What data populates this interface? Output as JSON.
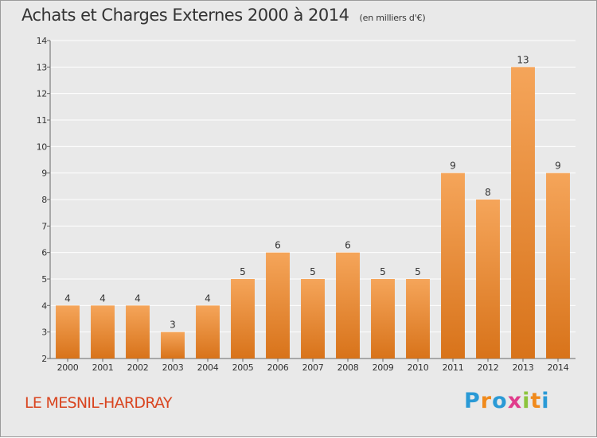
{
  "header": {
    "title": "Achats et Charges Externes 2000 à 2014",
    "subtitle": "(en milliers d'€)"
  },
  "footer": {
    "commune": "LE MESNIL-HARDRAY",
    "brand_letters": [
      {
        "char": "P",
        "color": "#2a9ad6"
      },
      {
        "char": "r",
        "color": "#f08a1c"
      },
      {
        "char": "o",
        "color": "#2a9ad6"
      },
      {
        "char": "x",
        "color": "#e03c8c"
      },
      {
        "char": "i",
        "color": "#8cc43c"
      },
      {
        "char": "t",
        "color": "#f08a1c"
      },
      {
        "char": "i",
        "color": "#2a9ad6"
      }
    ]
  },
  "colors": {
    "background": "#e9e9e9",
    "bar_top": "#f5a55a",
    "bar_bottom": "#d8731a",
    "grid": "#ffffff",
    "commune": "#d94520"
  },
  "chart_data": {
    "type": "bar",
    "title": "Achats et Charges Externes 2000 à 2014",
    "subtitle": "(en milliers d'€)",
    "categories": [
      "2000",
      "2001",
      "2002",
      "2003",
      "2004",
      "2005",
      "2006",
      "2007",
      "2008",
      "2009",
      "2010",
      "2011",
      "2012",
      "2013",
      "2014"
    ],
    "values": [
      4,
      4,
      4,
      3,
      4,
      5,
      6,
      5,
      6,
      5,
      5,
      9,
      8,
      13,
      9
    ],
    "ylim": [
      2,
      14
    ],
    "yticks": [
      2,
      3,
      4,
      5,
      6,
      7,
      8,
      9,
      10,
      11,
      12,
      13,
      14
    ],
    "grid": true,
    "xlabel": "",
    "ylabel": ""
  }
}
